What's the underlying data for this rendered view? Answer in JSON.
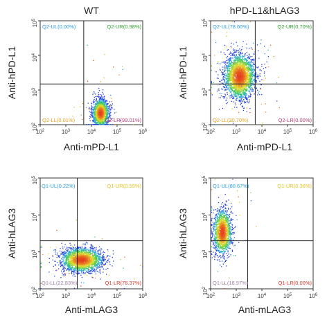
{
  "panels": [
    {
      "title": "WT",
      "xlabel": "Anti-mPD-L1",
      "ylabel": "Anti-hPD-L1",
      "gate": {
        "x": 5000,
        "y": 1500
      },
      "quadrants": {
        "UL": {
          "label": "Q2-UL(0.00%)",
          "color": "#2a9be0"
        },
        "UR": {
          "label": "Q2-UR(0.98%)",
          "color": "#2ba02b"
        },
        "LL": {
          "label": "Q2-LL(0.01%)",
          "color": "#e8a020"
        },
        "LR": {
          "label": "Q2-LR(99.01%)",
          "color": "#b03a6a"
        }
      }
    },
    {
      "title": "hPD-L1&hLAG3",
      "xlabel": "Anti-mPD-L1",
      "ylabel": "Anti-hPD-L1",
      "gate": {
        "x": 5500,
        "y": 1500
      },
      "quadrants": {
        "UL": {
          "label": "Q2-UL(78.60%)",
          "color": "#2a9be0"
        },
        "UR": {
          "label": "Q2-UR(0.70%)",
          "color": "#2ba02b"
        },
        "LL": {
          "label": "Q2-LL(20.70%)",
          "color": "#e8a020"
        },
        "LR": {
          "label": "Q2-LR(0.00%)",
          "color": "#b03a6a"
        }
      }
    },
    {
      "title": "",
      "xlabel": "Anti-mLAG3",
      "ylabel": "Anti-hLAG3",
      "gate": {
        "x": 2800,
        "y": 2000
      },
      "quadrants": {
        "UL": {
          "label": "Q1-UL(0.22%)",
          "color": "#2a9be0"
        },
        "UR": {
          "label": "Q1-UR(0.59%)",
          "color": "#e8c020"
        },
        "LL": {
          "label": "Q1-LL(22.83%)",
          "color": "#9a7aa0"
        },
        "LR": {
          "label": "Q1-LR(76.37%)",
          "color": "#e03020"
        }
      }
    },
    {
      "title": "",
      "xlabel": "Anti-mLAG3",
      "ylabel": "Anti-hLAG3",
      "gate": {
        "x": 2800,
        "y": 2000
      },
      "quadrants": {
        "UL": {
          "label": "Q1-UL(80.67%)",
          "color": "#2a9be0"
        },
        "UR": {
          "label": "Q1-UR(0.36%)",
          "color": "#e8c020"
        },
        "LL": {
          "label": "Q1-LL(18.97%)",
          "color": "#9a7aa0"
        },
        "LR": {
          "label": "Q1-LR(0.00%)",
          "color": "#e03020"
        }
      }
    }
  ],
  "chart_data": [
    {
      "type": "scatter",
      "title": "WT",
      "xlabel": "Anti-mPD-L1",
      "ylabel": "Anti-hPD-L1",
      "xscale": "log",
      "yscale": "log",
      "xlim": [
        100,
        1000000
      ],
      "ylim": [
        100,
        100000
      ],
      "xticks": [
        "10^2",
        "10^3",
        "10^4",
        "10^5",
        "10^6"
      ],
      "yticks": [
        "10^2",
        "10^3",
        "10^4",
        "10^5"
      ],
      "gate": {
        "x": 5000,
        "y": 1500
      },
      "quadrant_percent": {
        "UL": 0.0,
        "UR": 0.98,
        "LL": 0.01,
        "LR": 99.01
      },
      "population_center": {
        "x": 22000,
        "y": 220
      },
      "population_spread_log10": {
        "x": 0.16,
        "y": 0.2
      }
    },
    {
      "type": "scatter",
      "title": "hPD-L1&hLAG3",
      "xlabel": "Anti-mPD-L1",
      "ylabel": "Anti-hPD-L1",
      "xscale": "log",
      "yscale": "log",
      "xlim": [
        100,
        1000000
      ],
      "ylim": [
        100,
        100000
      ],
      "xticks": [
        "10^2",
        "10^3",
        "10^4",
        "10^5",
        "10^6"
      ],
      "yticks": [
        "10^2",
        "10^3",
        "10^4",
        "10^5"
      ],
      "gate": {
        "x": 5500,
        "y": 1500
      },
      "quadrant_percent": {
        "UL": 78.6,
        "UR": 0.7,
        "LL": 20.7,
        "LR": 0.0
      },
      "population_center": {
        "x": 1300,
        "y": 2500
      },
      "population_spread_log10": {
        "x": 0.3,
        "y": 0.32
      }
    },
    {
      "type": "scatter",
      "title": "",
      "xlabel": "Anti-mLAG3",
      "ylabel": "Anti-hLAG3",
      "xscale": "log",
      "yscale": "log",
      "xlim": [
        100,
        1000000
      ],
      "ylim": [
        100,
        100000
      ],
      "xticks": [
        "10^2",
        "10^3",
        "10^4",
        "10^5",
        "10^6"
      ],
      "yticks": [
        "10^2",
        "10^3",
        "10^4",
        "10^5"
      ],
      "gate": {
        "x": 2800,
        "y": 2000
      },
      "quadrant_percent": {
        "UL": 0.22,
        "UR": 0.59,
        "LL": 22.83,
        "LR": 76.37
      },
      "population_center": {
        "x": 4000,
        "y": 620
      },
      "population_spread_log10": {
        "x": 0.4,
        "y": 0.16
      }
    },
    {
      "type": "scatter",
      "title": "",
      "xlabel": "Anti-mLAG3",
      "ylabel": "Anti-hLAG3",
      "xscale": "log",
      "yscale": "log",
      "xlim": [
        100,
        1000000
      ],
      "ylim": [
        100,
        100000
      ],
      "xticks": [
        "10^2",
        "10^3",
        "10^4",
        "10^5",
        "10^6"
      ],
      "yticks": [
        "10^2",
        "10^3",
        "10^4",
        "10^5"
      ],
      "gate": {
        "x": 2800,
        "y": 2000
      },
      "quadrant_percent": {
        "UL": 80.67,
        "UR": 0.36,
        "LL": 18.97,
        "LR": 0.0
      },
      "population_center": {
        "x": 280,
        "y": 3500
      },
      "population_spread_log10": {
        "x": 0.18,
        "y": 0.3
      }
    }
  ]
}
